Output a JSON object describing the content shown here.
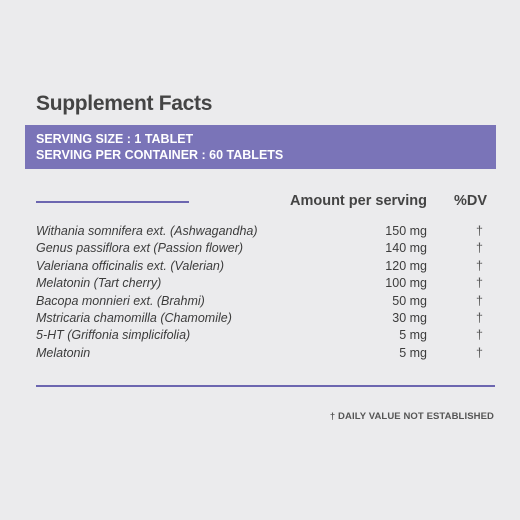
{
  "title": "Supplement Facts",
  "serving": {
    "size": "SERVING SIZE : 1 TABLET",
    "per_container": "SERVING PER CONTAINER : 60 TABLETS"
  },
  "columns": {
    "amount": "Amount per serving",
    "dv": "%DV"
  },
  "ingredients": [
    {
      "name": "Withania somnifera ext. (Ashwagandha)",
      "amount": "150 mg",
      "dv": "†"
    },
    {
      "name": "Genus passiflora ext (Passion flower)",
      "amount": "140 mg",
      "dv": "†"
    },
    {
      "name": "Valeriana officinalis ext. (Valerian)",
      "amount": "120 mg",
      "dv": "†"
    },
    {
      "name": "Melatonin (Tart cherry)",
      "amount": "100 mg",
      "dv": "†"
    },
    {
      "name": "Bacopa monnieri ext. (Brahmi)",
      "amount": "50 mg",
      "dv": "†"
    },
    {
      "name": "Mstricaria chamomilla (Chamomile)",
      "amount": "30 mg",
      "dv": "†"
    },
    {
      "name": "5-HT (Griffonia simplicifolia)",
      "amount": "5 mg",
      "dv": "†"
    },
    {
      "name": "Melatonin",
      "amount": "5 mg",
      "dv": "†"
    }
  ],
  "footnote": "† DAILY VALUE NOT ESTABLISHED",
  "colors": {
    "accent": "#7a74b8",
    "rule": "#6c66b0",
    "background": "#ebebed"
  }
}
